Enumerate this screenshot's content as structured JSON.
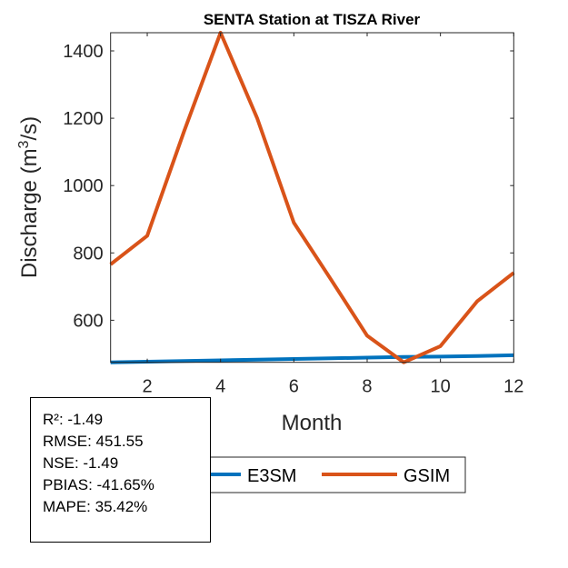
{
  "chart_data": {
    "type": "line",
    "title": "SENTA  Station at  TISZA  River",
    "xlabel": "Month",
    "ylabel": "Discharge (m",
    "ylabel_sup": "3",
    "ylabel_end": "/s)",
    "xlim": [
      1,
      12
    ],
    "ylim": [
      475,
      1454
    ],
    "xticks": [
      2,
      4,
      6,
      8,
      10,
      12
    ],
    "yticks": [
      600,
      800,
      1000,
      1200,
      1400
    ],
    "x": [
      1,
      2,
      3,
      4,
      5,
      6,
      7,
      8,
      9,
      10,
      11,
      12
    ],
    "series": [
      {
        "name": "E3SM",
        "color": "#0072BD",
        "values": [
          475,
          477,
          479,
          481,
          483,
          485,
          487,
          489,
          491,
          492,
          494,
          496
        ]
      },
      {
        "name": "GSIM",
        "color": "#D95319",
        "values": [
          766,
          851,
          1160,
          1454,
          1200,
          890,
          723,
          554,
          475,
          523,
          656,
          741
        ]
      }
    ],
    "legend_position": "bottom",
    "grid": false
  },
  "stats": {
    "r2": "R²: -1.49",
    "rmse": "RMSE: 451.55",
    "nse": "NSE: -1.49",
    "pbias": "PBIAS: -41.65%",
    "mape": "MAPE: 35.42%"
  }
}
